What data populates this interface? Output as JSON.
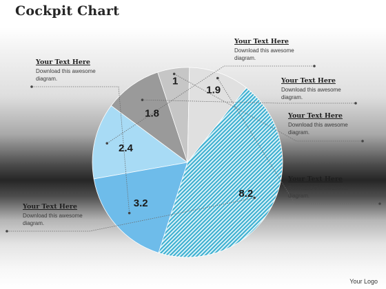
{
  "title": "Cockpit Chart",
  "logo": "Your Logo",
  "chart_data": {
    "type": "pie",
    "categories": [
      "2.4",
      "1.8",
      "1",
      "1.9",
      "8.2",
      "3.2"
    ],
    "values": [
      2.4,
      1.8,
      1,
      1.9,
      8.2,
      3.2
    ],
    "labels": [
      "2.4",
      "1.8",
      "1",
      "1.9",
      "8.2",
      "3.2"
    ],
    "colors": [
      "#a8dbf5",
      "#9a9a9a",
      "#c6c6c6",
      "#e0e0e0",
      "#4fb8d4",
      "#6ebcea"
    ],
    "patterns": [
      "solid",
      "solid",
      "solid",
      "solid",
      "hatched",
      "solid"
    ]
  },
  "callouts": [
    {
      "heading": "Your Text Here",
      "body": "Download this awesome diagram."
    },
    {
      "heading": "Your Text Here",
      "body": "Download this awesome diagram."
    },
    {
      "heading": "Your Text Here",
      "body": "Download this awesome diagram."
    },
    {
      "heading": "Your Text Here",
      "body": "Download this awesome diagram."
    },
    {
      "heading": "Your Text Here",
      "body": "Download this awesome diagram."
    },
    {
      "heading": "Your Text Here",
      "body": "Download this awesome diagram."
    }
  ]
}
